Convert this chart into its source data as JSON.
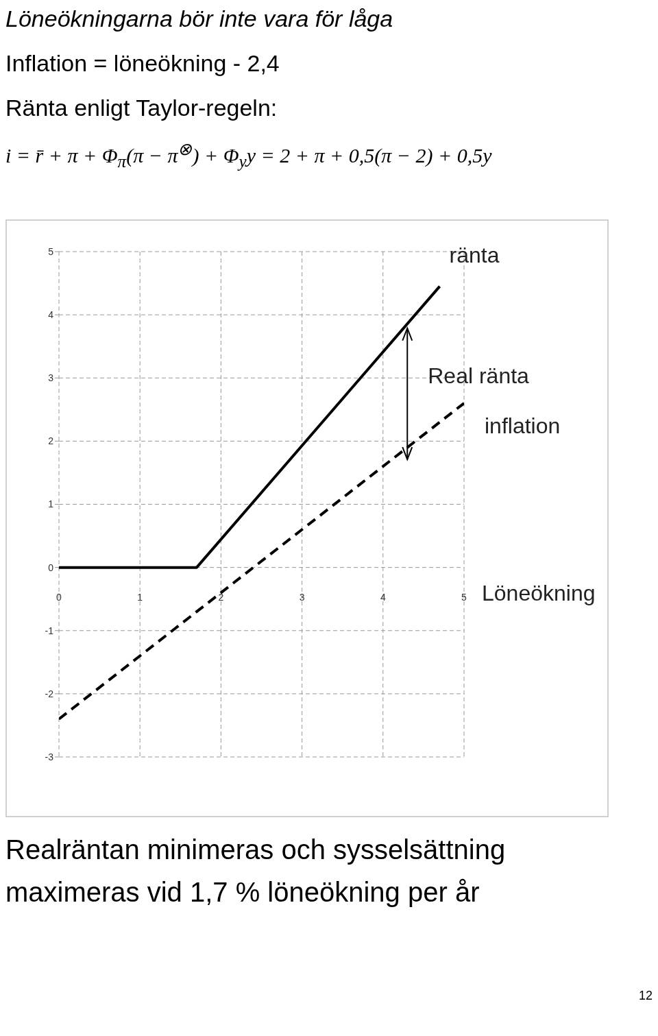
{
  "chart_data": {
    "type": "line",
    "title": "Löneökningarna bör inte vara för låga",
    "subtitle": "Inflation = löneökning - 2,4",
    "xlabel": "Löneökning",
    "annotations": [
      "Ränta enligt Taylor-regeln:",
      "i = r̄ + π + Φ$_{π}$(π − π$^{⊗}$) + Φ$_{y}$y = 2 + π + 0,5(π − 2) + 0,5y",
      "Real ränta",
      "Realräntan minimeras och sysselsättning maximeras vid 1,7 % löneökning per år",
      "12"
    ],
    "series": [
      {
        "name": "ränta",
        "color": "#000000",
        "x": [
          0,
          1.7,
          4.7
        ],
        "values": [
          0,
          0,
          4.45
        ],
        "line_style": "solid"
      },
      {
        "name": "inflation",
        "color": "#000000",
        "x": [
          0,
          5
        ],
        "values": [
          -2.4,
          2.6
        ],
        "line_style": "dashed"
      }
    ],
    "xlim": [
      0,
      5
    ],
    "xticks": [
      0,
      1,
      2,
      3,
      4,
      5
    ],
    "ylim": [
      -3,
      5
    ],
    "yticks": [
      -3,
      -2,
      -1,
      0,
      1,
      2,
      3,
      4,
      5
    ],
    "grid": true,
    "legend": false,
    "marker": "none"
  }
}
